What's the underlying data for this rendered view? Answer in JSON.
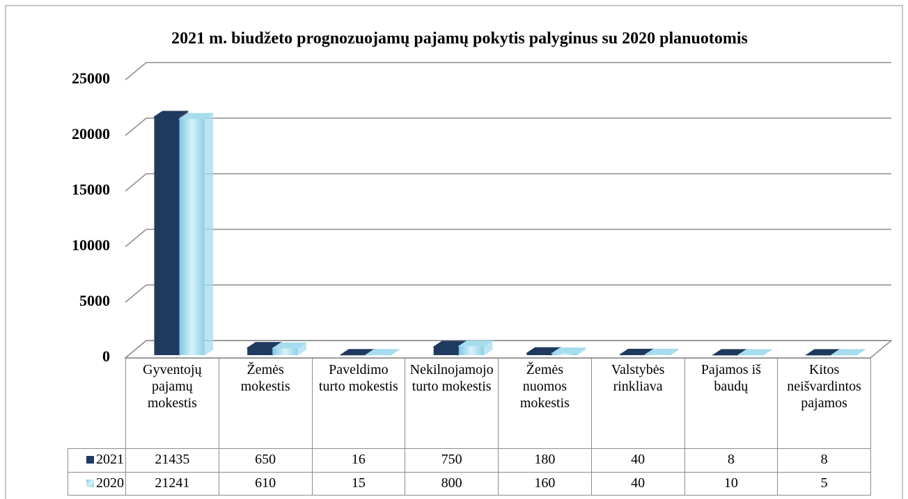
{
  "chart_data": {
    "type": "bar3d",
    "title": "2021 m. biudžeto prognozuojamų pajamų pokytis palyginus su 2020 planuotomis",
    "categories": [
      "Gyventojų pajamų mokestis",
      "Žemės mokestis",
      "Paveldimo turto mokestis",
      "Nekilnojamojo turto mokestis",
      "Žemės nuomos mokestis",
      "Valstybės rinkliava",
      "Pajamos iš baudų",
      "Kitos neišvardintos pajamos"
    ],
    "series": [
      {
        "name": "2021",
        "color": "#1f3a5f",
        "values": [
          21435,
          650,
          16,
          750,
          180,
          40,
          8,
          8
        ]
      },
      {
        "name": "2020",
        "color": "#a6dcee",
        "values": [
          21241,
          610,
          15,
          800,
          160,
          40,
          10,
          5
        ]
      }
    ],
    "ylim": [
      0,
      25000
    ],
    "yticks": [
      0,
      5000,
      10000,
      15000,
      20000,
      25000
    ],
    "grid": true,
    "data_table": true
  }
}
